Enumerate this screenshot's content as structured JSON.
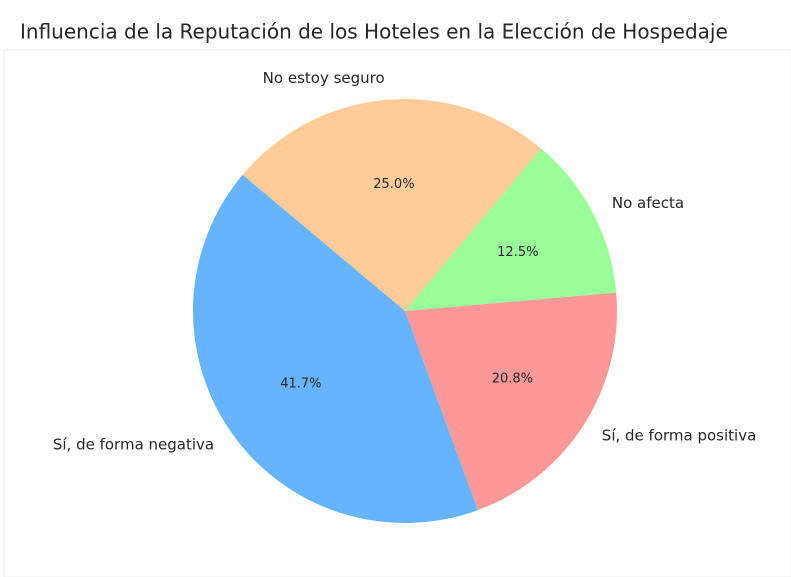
{
  "chart_data": {
    "type": "pie",
    "title": "Influencia de la Reputación de los Hoteles en la Elección de Hospedaje",
    "categories": [
      "Sí, de forma negativa",
      "Sí, de forma positiva",
      "No afecta",
      "No estoy seguro"
    ],
    "values": [
      41.7,
      20.8,
      12.5,
      25.0
    ],
    "value_labels": [
      "41.7%",
      "20.8%",
      "12.5%",
      "25.0%"
    ],
    "colors": [
      "#66b3ff",
      "#ff9999",
      "#99ff99",
      "#ffcc99"
    ]
  }
}
